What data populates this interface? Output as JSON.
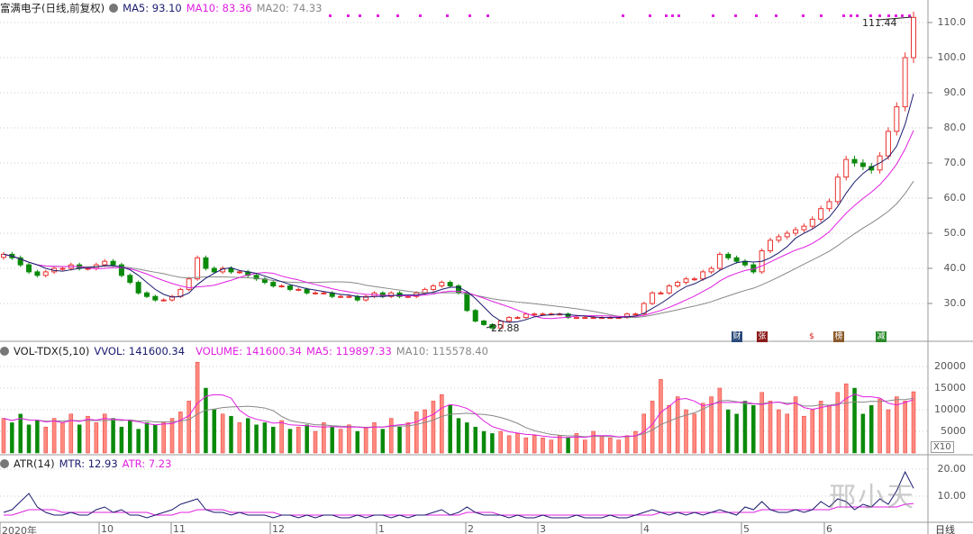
{
  "header": {
    "title": "富满电子(日线,前复权)",
    "ma5": "MA5: 93.10",
    "ma10": "MA10: 83.36",
    "ma20": "MA20: 74.33"
  },
  "volume_header": {
    "name": "VOL-TDX(5,10)",
    "vvol": "VVOL: 141600.34",
    "volume": "VOLUME: 141600.34",
    "ma5": "MA5: 119897.33",
    "ma10": "MA10: 115578.40"
  },
  "atr_header": {
    "name": "ATR(14)",
    "mtr": "MTR: 12.93",
    "atr": "ATR: 7.23"
  },
  "annotations": {
    "high": "111.44",
    "low": "22.88"
  },
  "events": [
    {
      "label": "财",
      "color": "#2a4a7a"
    },
    {
      "label": "张",
      "color": "#8b1a1a"
    },
    {
      "label": "$",
      "color": "#e02020"
    },
    {
      "label": "榜",
      "color": "#8a5a2a"
    },
    {
      "label": "减",
      "color": "#2a8a2a"
    }
  ],
  "x10_label": "X10",
  "period_label": "日线",
  "watermark": "邢小天",
  "colors": {
    "up": "#e8322e",
    "up_fill": "#ff8a80",
    "down": "#0a8a0a",
    "ma5": "#1a1a6e",
    "ma10": "#e020e0",
    "ma20": "#888888"
  },
  "chart_data": {
    "type": "candlestick",
    "price_axis": {
      "ticks": [
        "110.0",
        "100.0",
        "90.0",
        "80.0",
        "70.0",
        "60.0",
        "50.0",
        "40.0",
        "30.0"
      ],
      "range": [
        20,
        113
      ]
    },
    "volume_axis": {
      "ticks": [
        "20000",
        "15000",
        "10000",
        "5000"
      ],
      "range": [
        0,
        20000
      ]
    },
    "atr_axis": {
      "ticks": [
        "20.00",
        "10.00"
      ],
      "range": [
        0,
        20
      ]
    },
    "date_ticks": [
      "2020年",
      "10",
      "11",
      "12",
      "1",
      "2",
      "3",
      "4",
      "5",
      "6"
    ],
    "close": [
      44,
      43,
      41,
      39,
      38,
      39,
      40,
      40,
      41,
      40,
      40,
      41,
      42,
      41,
      38,
      36,
      33,
      32,
      31,
      31,
      32,
      34,
      37,
      43,
      40,
      39,
      40,
      39,
      39,
      38,
      37,
      36,
      35,
      35,
      34,
      34,
      33,
      33,
      33,
      32,
      32,
      32,
      31,
      32,
      33,
      32,
      33,
      32,
      32,
      33,
      34,
      35,
      36,
      35,
      33,
      28,
      25,
      24,
      23,
      25,
      26,
      26,
      27,
      27,
      27,
      27,
      27,
      26,
      26,
      26,
      26,
      26,
      26,
      26,
      27,
      27,
      30,
      33,
      33,
      35,
      36,
      37,
      37,
      39,
      40,
      44,
      43,
      42,
      41,
      39,
      45,
      48,
      49,
      50,
      51,
      52,
      54,
      57,
      59,
      66,
      71,
      70,
      69,
      68,
      72,
      79,
      86,
      100,
      111.44
    ],
    "volume": [
      8000,
      7000,
      9000,
      6500,
      7500,
      6000,
      8000,
      7000,
      9000,
      6500,
      8500,
      7000,
      9000,
      8000,
      6000,
      7500,
      5500,
      7000,
      6500,
      7000,
      8000,
      9500,
      12000,
      21000,
      15000,
      10000,
      9000,
      8500,
      7000,
      8000,
      6500,
      7000,
      6000,
      7500,
      5500,
      6000,
      6500,
      5000,
      7000,
      6000,
      5500,
      6500,
      5000,
      6000,
      7000,
      5500,
      8000,
      6000,
      7000,
      9500,
      10000,
      12000,
      13500,
      11000,
      8000,
      7000,
      6000,
      5000,
      4500,
      5000,
      4000,
      4500,
      3500,
      4000,
      3500,
      3000,
      4000,
      3500,
      4500,
      3000,
      5000,
      4000,
      3500,
      3000,
      4000,
      5000,
      9000,
      12000,
      17000,
      11000,
      13000,
      10000,
      9000,
      11500,
      13000,
      15000,
      10000,
      9000,
      12000,
      11000,
      14000,
      12000,
      10000,
      9000,
      13000,
      8500,
      10000,
      12000,
      11000,
      14000,
      16000,
      15000,
      9000,
      11000,
      12500,
      10000,
      13000,
      12000,
      14160
    ],
    "mtr": [
      4,
      5,
      8,
      11,
      6,
      4,
      3,
      3,
      4,
      3,
      3,
      5,
      6,
      4,
      5,
      3,
      3,
      2,
      3,
      4,
      5,
      7,
      8,
      9,
      5,
      4,
      4,
      3,
      4,
      3,
      3,
      3,
      2,
      3,
      3,
      2,
      3,
      2,
      3,
      3,
      2,
      2,
      3,
      2,
      3,
      3,
      2,
      3,
      2,
      3,
      3,
      4,
      5,
      3,
      4,
      6,
      4,
      3,
      3,
      3,
      2,
      3,
      2,
      2,
      3,
      2,
      2,
      2,
      3,
      2,
      2,
      2,
      3,
      2,
      2,
      3,
      4,
      5,
      4,
      3,
      4,
      3,
      4,
      3,
      4,
      5,
      4,
      3,
      6,
      5,
      8,
      5,
      4,
      4,
      5,
      4,
      5,
      8,
      6,
      9,
      8,
      5,
      7,
      6,
      9,
      7,
      12,
      19,
      12.93
    ],
    "atr": [
      3,
      3,
      4,
      5,
      5,
      5,
      5,
      4,
      4,
      4,
      4,
      4,
      4,
      4,
      4,
      4,
      4,
      4,
      3,
      3,
      3,
      4,
      4,
      5,
      5,
      5,
      5,
      4,
      4,
      4,
      4,
      4,
      4,
      3,
      3,
      3,
      3,
      3,
      3,
      3,
      3,
      3,
      3,
      3,
      3,
      3,
      3,
      3,
      3,
      3,
      3,
      3,
      3,
      3,
      3,
      4,
      4,
      4,
      4,
      3,
      3,
      3,
      3,
      3,
      3,
      3,
      3,
      3,
      3,
      3,
      3,
      3,
      3,
      3,
      3,
      3,
      3,
      3,
      4,
      4,
      4,
      4,
      4,
      4,
      4,
      4,
      4,
      4,
      4,
      4,
      5,
      5,
      5,
      5,
      5,
      5,
      5,
      5,
      5,
      6,
      6,
      6,
      6,
      6,
      6,
      6,
      6,
      7,
      7.23
    ]
  }
}
